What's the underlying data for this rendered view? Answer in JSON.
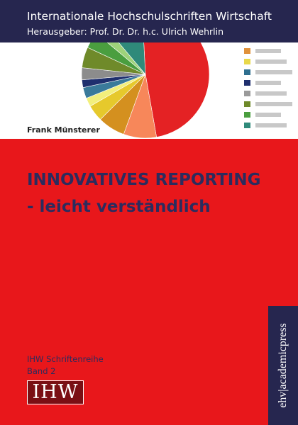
{
  "header": {
    "series_title": "Internationale Hochschulschriften Wirtschaft",
    "editor": "Herausgeber: Prof. Dr. Dr. h.c. Ulrich Wehrlin"
  },
  "author": "Frank Münsterer",
  "title": {
    "line1": "INNOVATIVES REPORTING",
    "line2": "- leicht verständlich"
  },
  "series": {
    "name": "IHW Schriftenreihe",
    "volume": "Band 2",
    "logo": "IHW"
  },
  "publisher": "ehv|academicpress"
}
